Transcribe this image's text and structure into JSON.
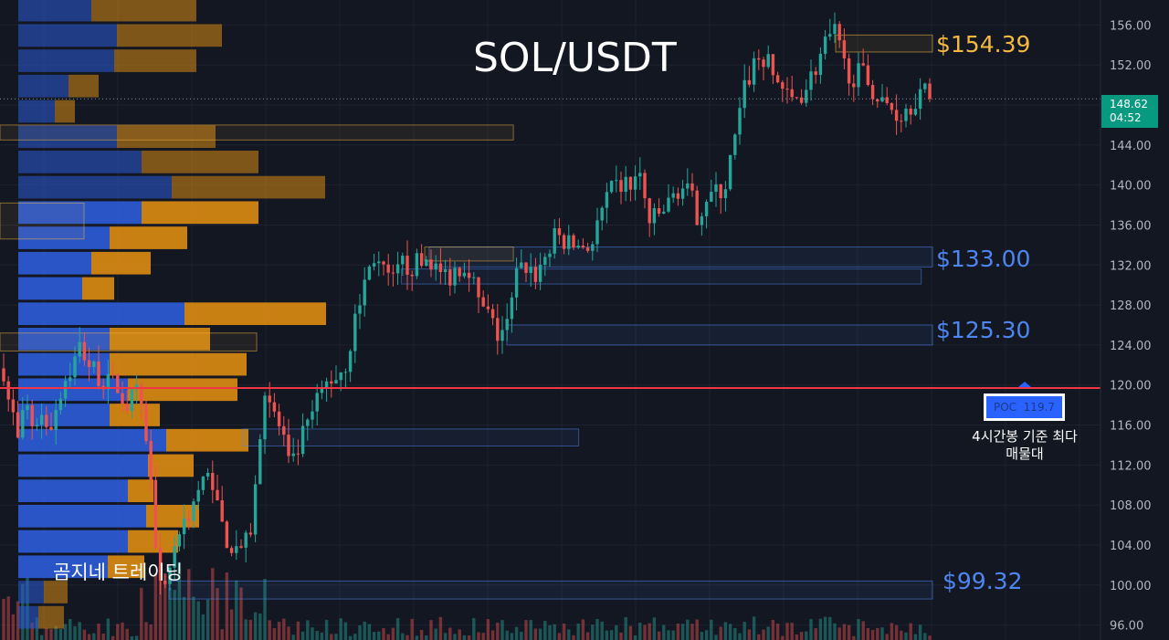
{
  "chart_data": {
    "type": "candlestick",
    "title": "SOL/USDT",
    "y_axis": {
      "ticks": [
        "156.00",
        "152.00",
        "148.00",
        "144.00",
        "140.00",
        "136.00",
        "132.00",
        "128.00",
        "124.00",
        "120.00",
        "116.00",
        "112.00",
        "108.00",
        "104.00",
        "100.00",
        "96.00"
      ],
      "range": [
        94.5,
        158.5
      ],
      "side": "right"
    },
    "current_price": "148.62",
    "countdown": "04:52",
    "poc": {
      "label": "POC",
      "value": "119.7",
      "price": 119.7
    },
    "levels": [
      {
        "label": "$154.39",
        "price_top": 155.0,
        "price_bottom": 153.3,
        "color": "#f5b841"
      },
      {
        "label": "$133.00",
        "price_top": 133.8,
        "price_bottom": 131.8,
        "color": "#4d86f0"
      },
      {
        "label": "$125.30",
        "price_top": 126.0,
        "price_bottom": 124.0,
        "color": "#4d86f0"
      },
      {
        "label": "$99.32",
        "price_top": 100.4,
        "price_bottom": 98.6,
        "color": "#4d86f0"
      }
    ],
    "extra_zones": [
      {
        "price_top": 131.6,
        "price_bottom": 130.1,
        "color": "#4d86f0",
        "x_start_frac": 0.43,
        "x_end_frac": 0.987
      },
      {
        "price_top": 115.6,
        "price_bottom": 113.9,
        "color": "#4d86f0",
        "x_start_frac": 0.26,
        "x_end_frac": 0.62
      },
      {
        "price_top": 146.0,
        "price_bottom": 144.5,
        "color": "#f5b841",
        "x_start_frac": 0.0,
        "x_end_frac": 0.55
      },
      {
        "price_top": 138.2,
        "price_bottom": 134.6,
        "color": "#f5b841",
        "x_start_frac": 0.0,
        "x_end_frac": 0.09
      },
      {
        "price_top": 125.2,
        "price_bottom": 123.4,
        "color": "#f5b841",
        "x_start_frac": 0.0,
        "x_end_frac": 0.275
      },
      {
        "price_top": 133.8,
        "price_bottom": 132.4,
        "color": "#f5b841",
        "x_start_frac": 0.455,
        "x_end_frac": 0.55
      }
    ],
    "volume_profile": {
      "price_min": 95.5,
      "price_step": 2.53,
      "up": [
        22,
        28,
        98,
        120,
        140,
        120,
        142,
        162,
        100,
        120,
        100,
        100,
        182,
        70,
        80,
        100,
        135,
        168,
        135,
        108,
        40,
        55,
        105,
        108,
        80,
        80,
        40
      ],
      "down": [
        28,
        26,
        40,
        55,
        58,
        28,
        50,
        90,
        55,
        120,
        150,
        110,
        155,
        35,
        65,
        85,
        128,
        168,
        128,
        108,
        22,
        33,
        90,
        115,
        115,
        90,
        22
      ]
    },
    "annotations": {
      "watermark": "곰지네 트레이딩",
      "poc_note": "4시간봉 기준 최다 매물대"
    },
    "anchors": [
      [
        0,
        127
      ],
      [
        6,
        119
      ],
      [
        12,
        118
      ],
      [
        20,
        114
      ],
      [
        28,
        118
      ],
      [
        36,
        116
      ],
      [
        44,
        117
      ],
      [
        55,
        116
      ],
      [
        68,
        120
      ],
      [
        80,
        122
      ],
      [
        88,
        124
      ],
      [
        98,
        122
      ],
      [
        108,
        121
      ],
      [
        118,
        120
      ],
      [
        128,
        120
      ],
      [
        138,
        118
      ],
      [
        150,
        119
      ],
      [
        160,
        115
      ],
      [
        170,
        105
      ],
      [
        180,
        99
      ],
      [
        190,
        104
      ],
      [
        200,
        106
      ],
      [
        210,
        108
      ],
      [
        220,
        110
      ],
      [
        232,
        111
      ],
      [
        242,
        106
      ],
      [
        252,
        104
      ],
      [
        262,
        104
      ],
      [
        272,
        104
      ],
      [
        280,
        110
      ],
      [
        290,
        120
      ],
      [
        300,
        117
      ],
      [
        310,
        115
      ],
      [
        318,
        111
      ],
      [
        328,
        114
      ],
      [
        338,
        116
      ],
      [
        346,
        118
      ],
      [
        356,
        120
      ],
      [
        368,
        121
      ],
      [
        378,
        122
      ],
      [
        388,
        126
      ],
      [
        398,
        130
      ],
      [
        410,
        133
      ],
      [
        420,
        131
      ],
      [
        430,
        130
      ],
      [
        440,
        132
      ],
      [
        452,
        132
      ],
      [
        462,
        132
      ],
      [
        470,
        133
      ],
      [
        480,
        131
      ],
      [
        492,
        131
      ],
      [
        502,
        132
      ],
      [
        514,
        132
      ],
      [
        524,
        128
      ],
      [
        534,
        127
      ],
      [
        544,
        125
      ],
      [
        556,
        126
      ],
      [
        566,
        131
      ],
      [
        576,
        132
      ],
      [
        586,
        131
      ],
      [
        598,
        133
      ],
      [
        610,
        135
      ],
      [
        622,
        134
      ],
      [
        636,
        134
      ],
      [
        648,
        134
      ],
      [
        658,
        137
      ],
      [
        668,
        139
      ],
      [
        680,
        140
      ],
      [
        690,
        140
      ],
      [
        700,
        141
      ],
      [
        712,
        136
      ],
      [
        722,
        137
      ],
      [
        732,
        138
      ],
      [
        744,
        140
      ],
      [
        754,
        139
      ],
      [
        764,
        137
      ],
      [
        774,
        139
      ],
      [
        784,
        139
      ],
      [
        794,
        140
      ],
      [
        804,
        144
      ],
      [
        814,
        149
      ],
      [
        824,
        152
      ],
      [
        834,
        153
      ],
      [
        846,
        151
      ],
      [
        856,
        150
      ],
      [
        864,
        148
      ],
      [
        874,
        149
      ],
      [
        884,
        150
      ],
      [
        894,
        152
      ],
      [
        904,
        154
      ],
      [
        914,
        155
      ],
      [
        924,
        152
      ],
      [
        934,
        151
      ],
      [
        944,
        151
      ],
      [
        954,
        150
      ],
      [
        964,
        148
      ],
      [
        974,
        148
      ],
      [
        984,
        147
      ],
      [
        994,
        148
      ],
      [
        1004,
        149
      ],
      [
        1014,
        149
      ],
      [
        1022,
        148.6
      ]
    ]
  }
}
